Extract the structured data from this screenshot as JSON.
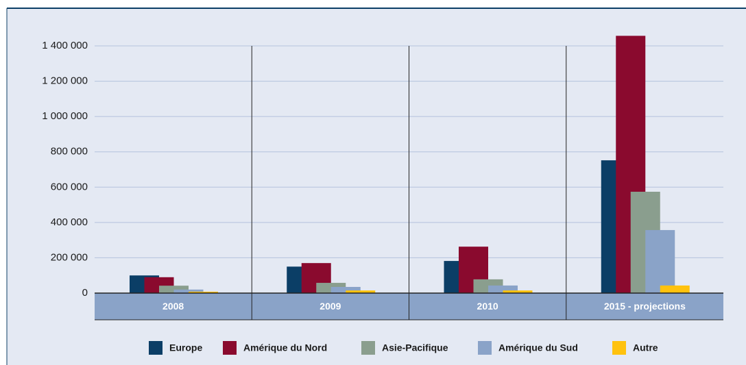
{
  "chart_data": {
    "type": "bar",
    "categories": [
      "2008",
      "2009",
      "2010",
      "2015 - projections"
    ],
    "series": [
      {
        "name": "Europe",
        "color": "#0b3e66",
        "values": [
          100000,
          150000,
          182000,
          752000
        ]
      },
      {
        "name": "Amérique du Nord",
        "color": "#8a0a2e",
        "values": [
          90000,
          170000,
          263000,
          1457000
        ]
      },
      {
        "name": "Asie-Pacifique",
        "color": "#8a9e8e",
        "values": [
          42000,
          58000,
          78000,
          574000
        ]
      },
      {
        "name": "Amérique du Sud",
        "color": "#8aa3c8",
        "values": [
          20000,
          35000,
          43000,
          357000
        ]
      },
      {
        "name": "Autre",
        "color": "#ffc20e",
        "values": [
          8000,
          15000,
          15000,
          43000
        ]
      }
    ],
    "ylim": [
      0,
      1400000
    ],
    "yticks": [
      0,
      {
        "value": 200000,
        "label": "200 000"
      },
      {
        "value": 400000,
        "label": "400 000"
      },
      {
        "value": 600000,
        "label": "600 000"
      },
      {
        "value": 800000,
        "label": "800 000"
      },
      {
        "value": 1000000,
        "label": "1 000 000"
      },
      {
        "value": 1200000,
        "label": "1 200 000"
      },
      {
        "value": 1400000,
        "label": "1 400 000"
      }
    ],
    "grid": true
  }
}
